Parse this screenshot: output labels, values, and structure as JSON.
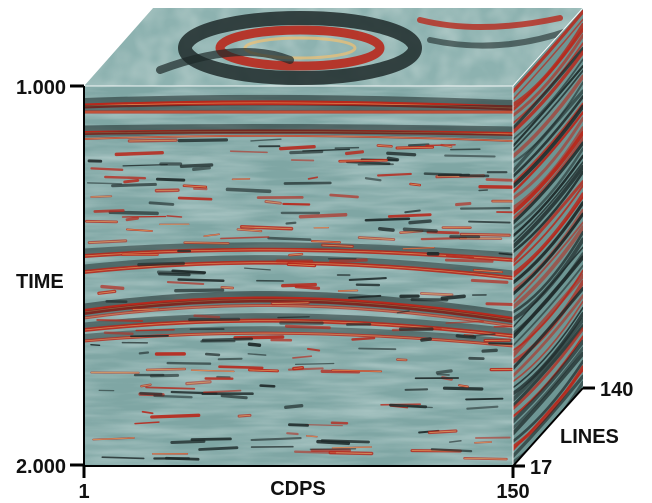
{
  "axes": {
    "time": {
      "label": "TIME",
      "top_tick": "1.000",
      "bottom_tick": "2.000"
    },
    "cdps": {
      "label": "CDPS",
      "start_tick": "1",
      "end_tick": "150"
    },
    "lines": {
      "label": "LINES",
      "near_tick": "17",
      "far_tick": "140"
    }
  },
  "colors": {
    "background": "#7fa6a4",
    "trough": "#1e2a2a",
    "peak": "#b8281c",
    "highlight": "#f2c070"
  }
}
